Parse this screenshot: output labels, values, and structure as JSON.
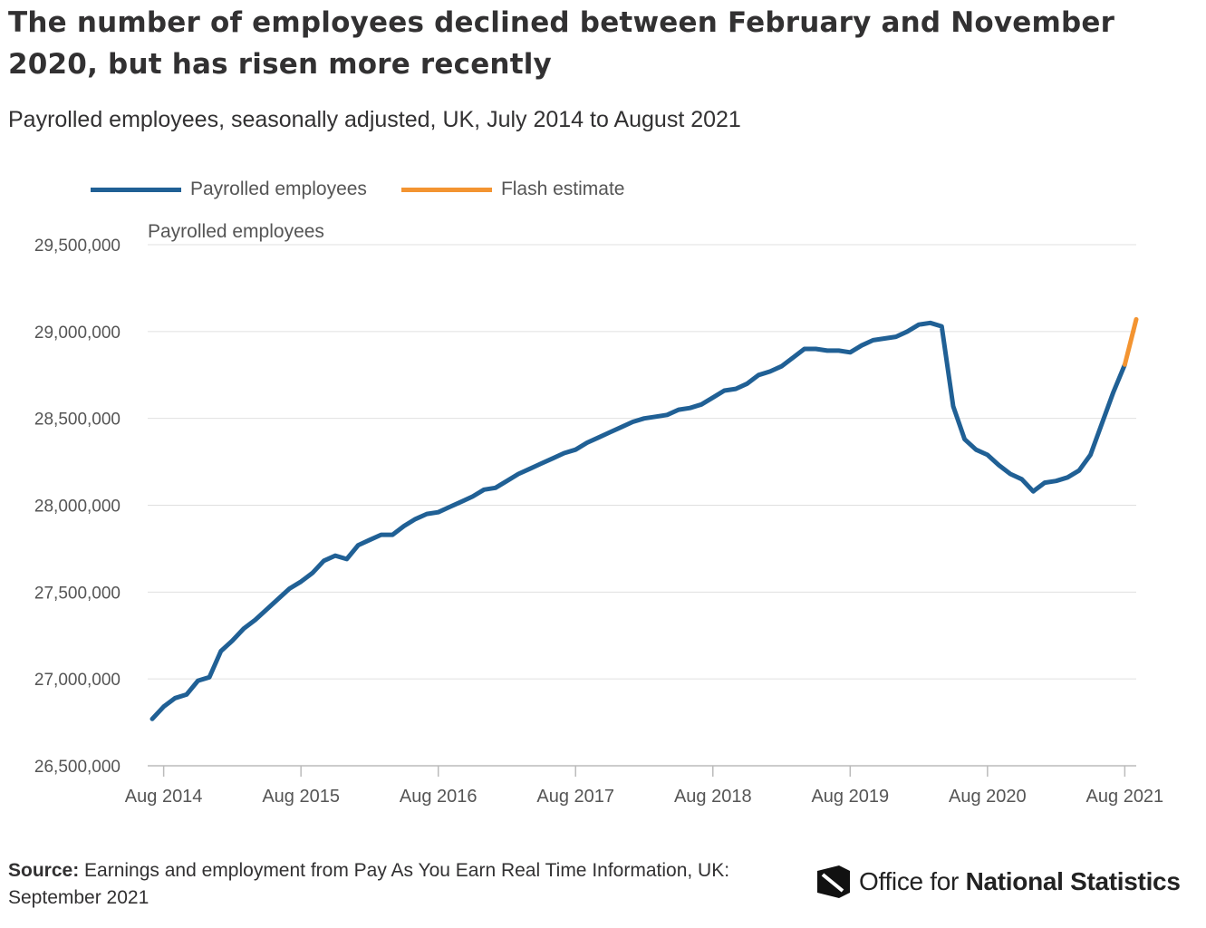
{
  "header": {
    "title": "The number of employees declined between February and November 2020, but has risen more recently",
    "subtitle": "Payrolled employees, seasonally adjusted, UK, July 2014 to August 2021"
  },
  "legend": [
    {
      "label": "Payrolled employees",
      "color": "#206095"
    },
    {
      "label": "Flash estimate",
      "color": "#f39431"
    }
  ],
  "footer": {
    "source_label": "Source:",
    "source_text": "Earnings and employment from Pay As You Earn Real Time Information, UK: September 2021",
    "logo_text_regular": "Office for ",
    "logo_text_bold": "National Statistics"
  },
  "chart_data": {
    "type": "line",
    "title": "The number of employees declined between February and November 2020, but has risen more recently",
    "subtitle": "Payrolled employees, seasonally adjusted, UK, July 2014 to August 2021",
    "ylabel": "Payrolled employees",
    "xlabel": "",
    "x_start": "Jul 2014",
    "x_end": "Aug 2021",
    "ylim": [
      26500000,
      29500000
    ],
    "y_ticks": [
      26500000,
      27000000,
      27500000,
      28000000,
      28500000,
      29000000,
      29500000
    ],
    "y_tick_labels": [
      "26,500,000",
      "27,000,000",
      "27,500,000",
      "28,000,000",
      "28,500,000",
      "29,000,000",
      "29,500,000"
    ],
    "x_tick_labels": [
      "Aug 2014",
      "Aug 2015",
      "Aug 2016",
      "Aug 2017",
      "Aug 2018",
      "Aug 2019",
      "Aug 2020",
      "Aug 2021"
    ],
    "grid": true,
    "legend_position": "top-left",
    "series": [
      {
        "name": "Payrolled employees",
        "color": "#206095",
        "points": [
          [
            "Jul 2014",
            26770000
          ],
          [
            "Aug 2014",
            26840000
          ],
          [
            "Sep 2014",
            26890000
          ],
          [
            "Oct 2014",
            26910000
          ],
          [
            "Nov 2014",
            26990000
          ],
          [
            "Dec 2014",
            27010000
          ],
          [
            "Jan 2015",
            27160000
          ],
          [
            "Feb 2015",
            27220000
          ],
          [
            "Mar 2015",
            27290000
          ],
          [
            "Apr 2015",
            27340000
          ],
          [
            "May 2015",
            27400000
          ],
          [
            "Jun 2015",
            27460000
          ],
          [
            "Jul 2015",
            27520000
          ],
          [
            "Aug 2015",
            27560000
          ],
          [
            "Sep 2015",
            27610000
          ],
          [
            "Oct 2015",
            27680000
          ],
          [
            "Nov 2015",
            27710000
          ],
          [
            "Dec 2015",
            27690000
          ],
          [
            "Jan 2016",
            27770000
          ],
          [
            "Feb 2016",
            27800000
          ],
          [
            "Mar 2016",
            27830000
          ],
          [
            "Apr 2016",
            27830000
          ],
          [
            "May 2016",
            27880000
          ],
          [
            "Jun 2016",
            27920000
          ],
          [
            "Jul 2016",
            27950000
          ],
          [
            "Aug 2016",
            27960000
          ],
          [
            "Sep 2016",
            27990000
          ],
          [
            "Oct 2016",
            28020000
          ],
          [
            "Nov 2016",
            28050000
          ],
          [
            "Dec 2016",
            28090000
          ],
          [
            "Jan 2017",
            28100000
          ],
          [
            "Feb 2017",
            28140000
          ],
          [
            "Mar 2017",
            28180000
          ],
          [
            "Apr 2017",
            28210000
          ],
          [
            "May 2017",
            28240000
          ],
          [
            "Jun 2017",
            28270000
          ],
          [
            "Jul 2017",
            28300000
          ],
          [
            "Aug 2017",
            28320000
          ],
          [
            "Sep 2017",
            28360000
          ],
          [
            "Oct 2017",
            28390000
          ],
          [
            "Nov 2017",
            28420000
          ],
          [
            "Dec 2017",
            28450000
          ],
          [
            "Jan 2018",
            28480000
          ],
          [
            "Feb 2018",
            28500000
          ],
          [
            "Mar 2018",
            28510000
          ],
          [
            "Apr 2018",
            28520000
          ],
          [
            "May 2018",
            28550000
          ],
          [
            "Jun 2018",
            28560000
          ],
          [
            "Jul 2018",
            28580000
          ],
          [
            "Aug 2018",
            28620000
          ],
          [
            "Sep 2018",
            28660000
          ],
          [
            "Oct 2018",
            28670000
          ],
          [
            "Nov 2018",
            28700000
          ],
          [
            "Dec 2018",
            28750000
          ],
          [
            "Jan 2019",
            28770000
          ],
          [
            "Feb 2019",
            28800000
          ],
          [
            "Mar 2019",
            28850000
          ],
          [
            "Apr 2019",
            28900000
          ],
          [
            "May 2019",
            28900000
          ],
          [
            "Jun 2019",
            28890000
          ],
          [
            "Jul 2019",
            28890000
          ],
          [
            "Aug 2019",
            28880000
          ],
          [
            "Sep 2019",
            28920000
          ],
          [
            "Oct 2019",
            28950000
          ],
          [
            "Nov 2019",
            28960000
          ],
          [
            "Dec 2019",
            28970000
          ],
          [
            "Jan 2020",
            29000000
          ],
          [
            "Feb 2020",
            29040000
          ],
          [
            "Mar 2020",
            29050000
          ],
          [
            "Apr 2020",
            29030000
          ],
          [
            "May 2020",
            28570000
          ],
          [
            "Jun 2020",
            28380000
          ],
          [
            "Jul 2020",
            28320000
          ],
          [
            "Aug 2020",
            28290000
          ],
          [
            "Sep 2020",
            28230000
          ],
          [
            "Oct 2020",
            28180000
          ],
          [
            "Nov 2020",
            28150000
          ],
          [
            "Dec 2020",
            28080000
          ],
          [
            "Jan 2021",
            28130000
          ],
          [
            "Feb 2021",
            28140000
          ],
          [
            "Mar 2021",
            28160000
          ],
          [
            "Apr 2021",
            28200000
          ],
          [
            "May 2021",
            28290000
          ],
          [
            "Jun 2021",
            28470000
          ],
          [
            "Jul 2021",
            28650000
          ],
          [
            "Aug 2021",
            28810000
          ]
        ]
      },
      {
        "name": "Flash estimate",
        "color": "#f39431",
        "points": [
          [
            "Aug 2021",
            28810000
          ],
          [
            "Sep 2021",
            29070000
          ]
        ]
      }
    ]
  }
}
